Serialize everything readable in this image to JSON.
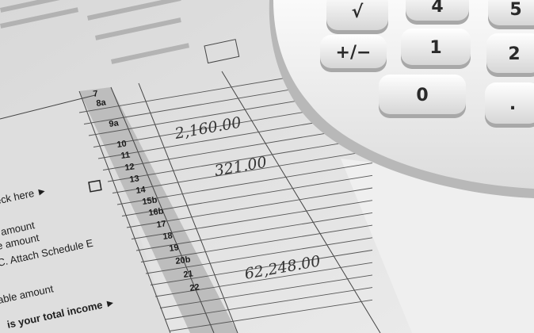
{
  "form": {
    "labels": [
      "eck here ►",
      "amount",
      "e amount",
      "C. Attach Schedule E",
      "able amount",
      "is your total income ►"
    ],
    "line_numbers": [
      "7",
      "8a",
      "9a",
      "10",
      "11",
      "12",
      "13",
      "14",
      "15b",
      "16b",
      "17",
      "18",
      "19",
      "20b",
      "21",
      "22"
    ],
    "handwritten_amounts": [
      "2,160.00",
      "321.00",
      "62,248.00"
    ]
  },
  "calculator": {
    "keys": [
      "√",
      "4",
      "5",
      "+/−",
      "1",
      "2",
      "0",
      "."
    ]
  },
  "colors": {
    "paper": "#e6e6e6",
    "shaded": "#b9b9b9",
    "calculator": "#f4f4f4",
    "ink": "#1a1a1a"
  }
}
